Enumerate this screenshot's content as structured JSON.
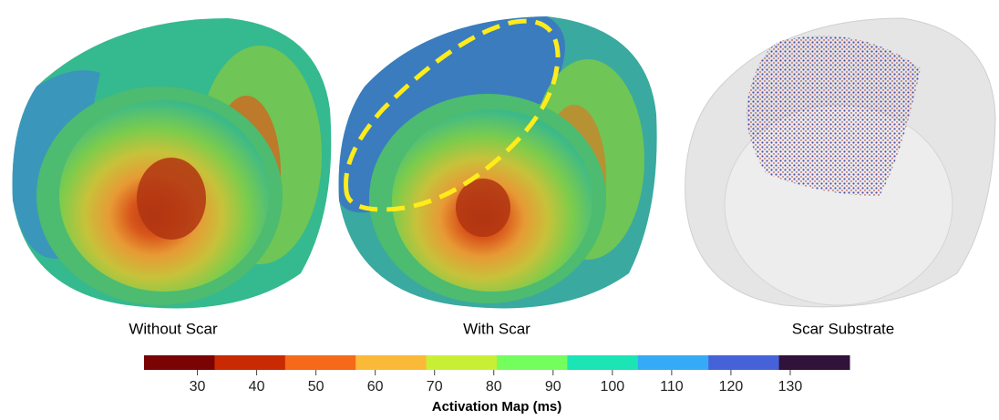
{
  "panels": [
    {
      "label": "Without Scar"
    },
    {
      "label": "With Scar"
    },
    {
      "label": "Scar Substrate"
    }
  ],
  "colorbar": {
    "title": "Activation Map (ms)",
    "lim": [
      21,
      140
    ],
    "ticks": [
      30,
      40,
      50,
      60,
      70,
      80,
      90,
      100,
      110,
      120,
      130
    ],
    "colors": [
      "#7a0403",
      "#c92903",
      "#f56918",
      "#fbb938",
      "#c9ef34",
      "#74fe5d",
      "#1be5b5",
      "#35abf8",
      "#4662d8",
      "#30123b"
    ]
  }
}
